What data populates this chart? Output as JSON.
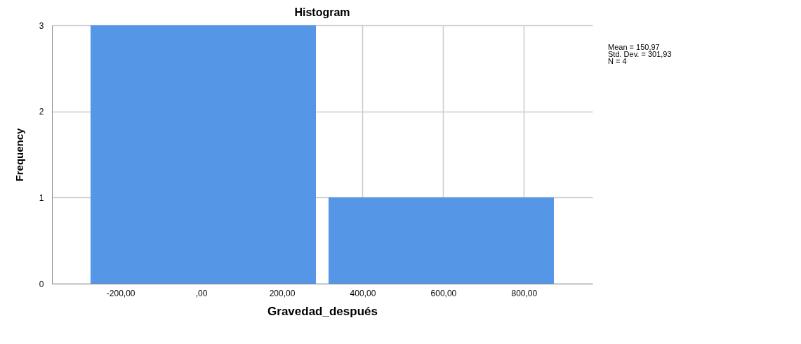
{
  "chart_data": {
    "type": "histogram",
    "title": "Histogram",
    "xlabel": "Gravedad_después",
    "ylabel": "Frequency",
    "bins": [
      -290,
      300,
      890
    ],
    "values": [
      3,
      1
    ],
    "color": "#5596e6",
    "xlim": [
      -370,
      970
    ],
    "xticks": [
      {
        "value": -200,
        "label": "-200,00"
      },
      {
        "value": 0,
        "label": ",00"
      },
      {
        "value": 200,
        "label": "200,00"
      },
      {
        "value": 400,
        "label": "400,00"
      },
      {
        "value": 600,
        "label": "600,00"
      },
      {
        "value": 800,
        "label": "800,00"
      }
    ],
    "ylim": [
      0,
      3
    ],
    "yticks": [
      0,
      1,
      2,
      3
    ],
    "grid": true,
    "annotations": [
      "Mean = 150,97",
      "Std. Dev. = 301,93",
      "N = 4"
    ]
  }
}
